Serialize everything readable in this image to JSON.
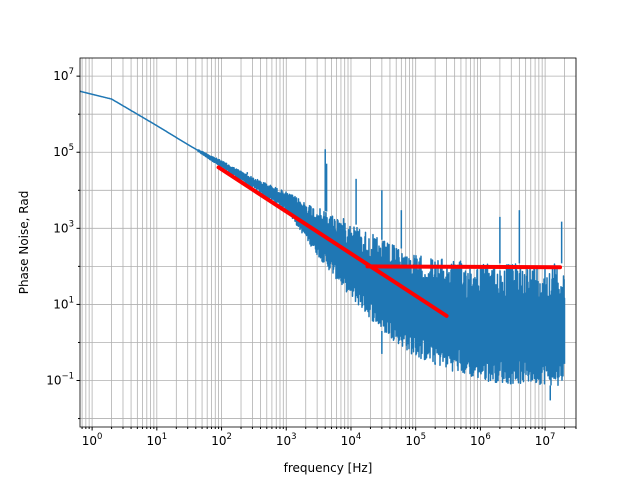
{
  "chart_data": {
    "type": "line",
    "title": "",
    "xlabel": "frequency [Hz]",
    "ylabel": "Phase Noise, Rad",
    "x_scale": "log",
    "y_scale": "log",
    "xlim": [
      0.65,
      30000000
    ],
    "ylim": [
      0.006,
      30000000
    ],
    "grid": "on (major and minor)",
    "x_ticks": [
      {
        "base": "10",
        "exp": "0"
      },
      {
        "base": "10",
        "exp": "1"
      },
      {
        "base": "10",
        "exp": "2"
      },
      {
        "base": "10",
        "exp": "3"
      },
      {
        "base": "10",
        "exp": "4"
      },
      {
        "base": "10",
        "exp": "5"
      },
      {
        "base": "10",
        "exp": "6"
      },
      {
        "base": "10",
        "exp": "7"
      }
    ],
    "y_ticks": [
      {
        "base": "10",
        "exp": "−1"
      },
      {
        "base": "10",
        "exp": "1"
      },
      {
        "base": "10",
        "exp": "3"
      },
      {
        "base": "10",
        "exp": "5"
      },
      {
        "base": "10",
        "exp": "7"
      }
    ],
    "series": [
      {
        "color": "#1f77b4",
        "envelope": {
          "x": [
            0.65,
            2,
            10,
            30,
            100,
            300,
            1000,
            3000,
            10000,
            30000,
            100000,
            300000,
            1000000,
            3000000,
            10000000,
            20000000
          ],
          "upper": [
            4000000,
            2500000,
            500000,
            160000,
            60000,
            22000,
            9000,
            3500,
            1500,
            500,
            200,
            150,
            120,
            120,
            120,
            120
          ],
          "lower": [
            4000000,
            2500000,
            500000,
            160000,
            40000,
            12000,
            3000,
            200,
            15,
            2,
            0.4,
            0.2,
            0.1,
            0.08,
            0.08,
            0.06
          ]
        },
        "spikes": [
          {
            "x": 100,
            "y": 50000
          },
          {
            "x": 250,
            "y": 30000
          },
          {
            "x": 4000,
            "y": 120000
          },
          {
            "x": 4200,
            "y": 50000
          },
          {
            "x": 12000,
            "y": 20000
          },
          {
            "x": 30000,
            "y": 10000
          },
          {
            "x": 60000,
            "y": 3000
          },
          {
            "x": 2000000,
            "y": 2000
          },
          {
            "x": 4000000,
            "y": 3000
          },
          {
            "x": 18000000,
            "y": 1500
          },
          {
            "x": 30000,
            "y": 0.5
          },
          {
            "x": 200000,
            "y": 0.3
          },
          {
            "x": 12000000,
            "y": 0.03
          }
        ]
      },
      {
        "color": "#ff0000",
        "x": [
          90,
          300000
        ],
        "y": [
          40000,
          5
        ]
      },
      {
        "color": "#ff0000",
        "x": [
          18000,
          17000000
        ],
        "y": [
          100,
          95
        ]
      }
    ]
  }
}
